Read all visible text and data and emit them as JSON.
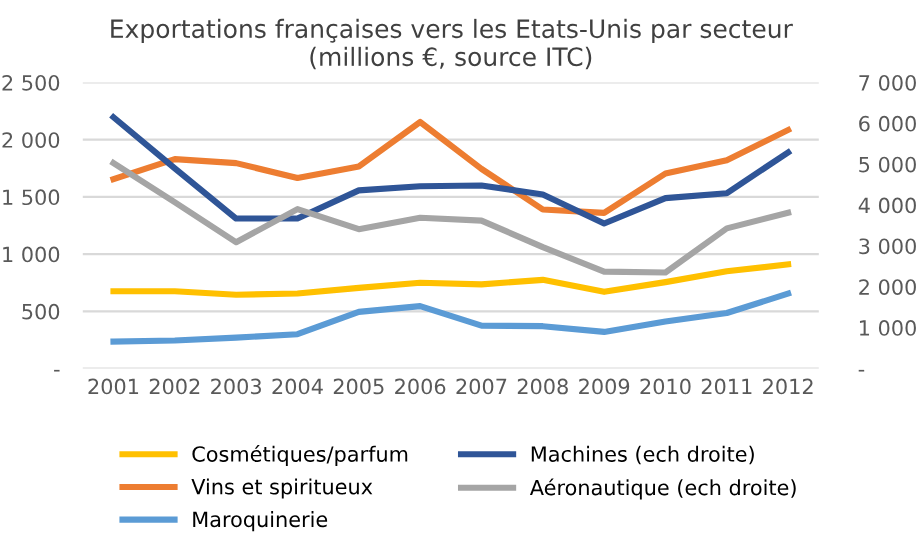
{
  "chart_data": {
    "type": "line",
    "title": "Exportations françaises vers les Etats-Unis par secteur\n(millions €, source ITC)",
    "categories": [
      "2001",
      "2002",
      "2003",
      "2004",
      "2005",
      "2006",
      "2007",
      "2008",
      "2009",
      "2010",
      "2011",
      "2012"
    ],
    "series": [
      {
        "name": "Cosmétiques/parfum",
        "color": "#ffc000",
        "values": [
          675,
          675,
          645,
          655,
          705,
          750,
          735,
          775,
          670,
          755,
          850,
          910
        ]
      },
      {
        "name": "Vins et spiritueux",
        "color": "#ed7d31",
        "values": [
          1655,
          1830,
          1795,
          1665,
          1765,
          2155,
          1745,
          1390,
          1360,
          1705,
          1820,
          2085
        ]
      },
      {
        "name": "Maroquinerie",
        "color": "#5b9bd5",
        "values": [
          235,
          245,
          270,
          300,
          495,
          545,
          375,
          370,
          320,
          410,
          485,
          655
        ]
      },
      {
        "name": "Machines (ech droite)",
        "color": "#2f5597",
        "axis": "y2",
        "values": [
          6150,
          4900,
          3670,
          3670,
          4360,
          4460,
          4480,
          4260,
          3550,
          4170,
          4290,
          5290
        ]
      },
      {
        "name": "Aéronautique (ech droite)",
        "color": "#a5a5a5",
        "axis": "y2",
        "values": [
          5030,
          4070,
          3090,
          3900,
          3410,
          3690,
          3620,
          2970,
          2370,
          2350,
          3430,
          3810
        ]
      }
    ],
    "ylim": [
      0,
      2500
    ],
    "yticks": [
      {
        "value": 0,
        "label": "-"
      },
      {
        "value": 500,
        "label": "500"
      },
      {
        "value": 1000,
        "label": "1 000"
      },
      {
        "value": 1500,
        "label": "1 500"
      },
      {
        "value": 2000,
        "label": "2 000"
      },
      {
        "value": 2500,
        "label": "2 500"
      }
    ],
    "y2lim": [
      0,
      7000
    ],
    "y2ticks": [
      {
        "value": 0,
        "label": "-"
      },
      {
        "value": 1000,
        "label": "1 000"
      },
      {
        "value": 2000,
        "label": "2 000"
      },
      {
        "value": 3000,
        "label": "3 000"
      },
      {
        "value": 4000,
        "label": "4 000"
      },
      {
        "value": 5000,
        "label": "5 000"
      },
      {
        "value": 6000,
        "label": "6 000"
      },
      {
        "value": 7000,
        "label": "7 000"
      }
    ],
    "grid": "y",
    "legend": "bottom",
    "marker": "none",
    "line_style": "solid"
  }
}
